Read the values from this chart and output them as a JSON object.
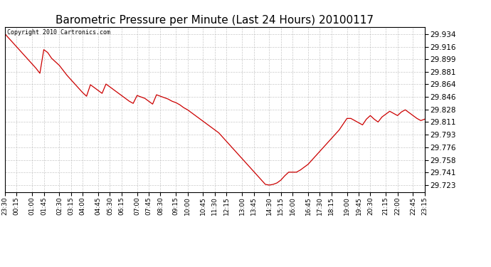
{
  "title": "Barometric Pressure per Minute (Last 24 Hours) 20100117",
  "copyright_text": "Copyright 2010 Cartronics.com",
  "line_color": "#cc0000",
  "background_color": "#ffffff",
  "grid_color": "#bbbbbb",
  "title_fontsize": 11,
  "yticks": [
    29.723,
    29.741,
    29.758,
    29.776,
    29.793,
    29.811,
    29.828,
    29.846,
    29.864,
    29.881,
    29.899,
    29.916,
    29.934
  ],
  "xtick_labels": [
    "23:30",
    "00:15",
    "01:00",
    "01:45",
    "02:30",
    "03:15",
    "04:00",
    "04:45",
    "05:30",
    "06:15",
    "07:00",
    "07:45",
    "08:30",
    "09:15",
    "10:00",
    "10:45",
    "11:30",
    "12:15",
    "13:00",
    "13:45",
    "14:30",
    "15:15",
    "16:00",
    "16:45",
    "17:30",
    "18:15",
    "19:00",
    "19:45",
    "20:30",
    "21:15",
    "22:00",
    "22:45",
    "23:15"
  ],
  "ylim": [
    29.713,
    29.944
  ],
  "data_y": [
    29.934,
    29.928,
    29.922,
    29.916,
    29.91,
    29.904,
    29.898,
    29.892,
    29.886,
    29.879,
    29.912,
    29.908,
    29.9,
    29.895,
    29.89,
    29.883,
    29.876,
    29.87,
    29.864,
    29.858,
    29.852,
    29.847,
    29.863,
    29.859,
    29.855,
    29.851,
    29.864,
    29.86,
    29.856,
    29.852,
    29.848,
    29.844,
    29.84,
    29.837,
    29.848,
    29.846,
    29.844,
    29.84,
    29.836,
    29.849,
    29.847,
    29.845,
    29.843,
    29.84,
    29.838,
    29.835,
    29.831,
    29.828,
    29.824,
    29.82,
    29.816,
    29.812,
    29.808,
    29.804,
    29.8,
    29.796,
    29.79,
    29.784,
    29.778,
    29.772,
    29.766,
    29.76,
    29.754,
    29.748,
    29.742,
    29.736,
    29.73,
    29.724,
    29.723,
    29.724,
    29.726,
    29.73,
    29.736,
    29.741,
    29.741,
    29.741,
    29.744,
    29.748,
    29.752,
    29.758,
    29.764,
    29.77,
    29.776,
    29.782,
    29.788,
    29.794,
    29.8,
    29.808,
    29.816,
    29.816,
    29.813,
    29.81,
    29.807,
    29.815,
    29.82,
    29.815,
    29.811,
    29.818,
    29.822,
    29.826,
    29.823,
    29.82,
    29.825,
    29.828,
    29.824,
    29.82,
    29.816,
    29.813,
    29.815
  ]
}
